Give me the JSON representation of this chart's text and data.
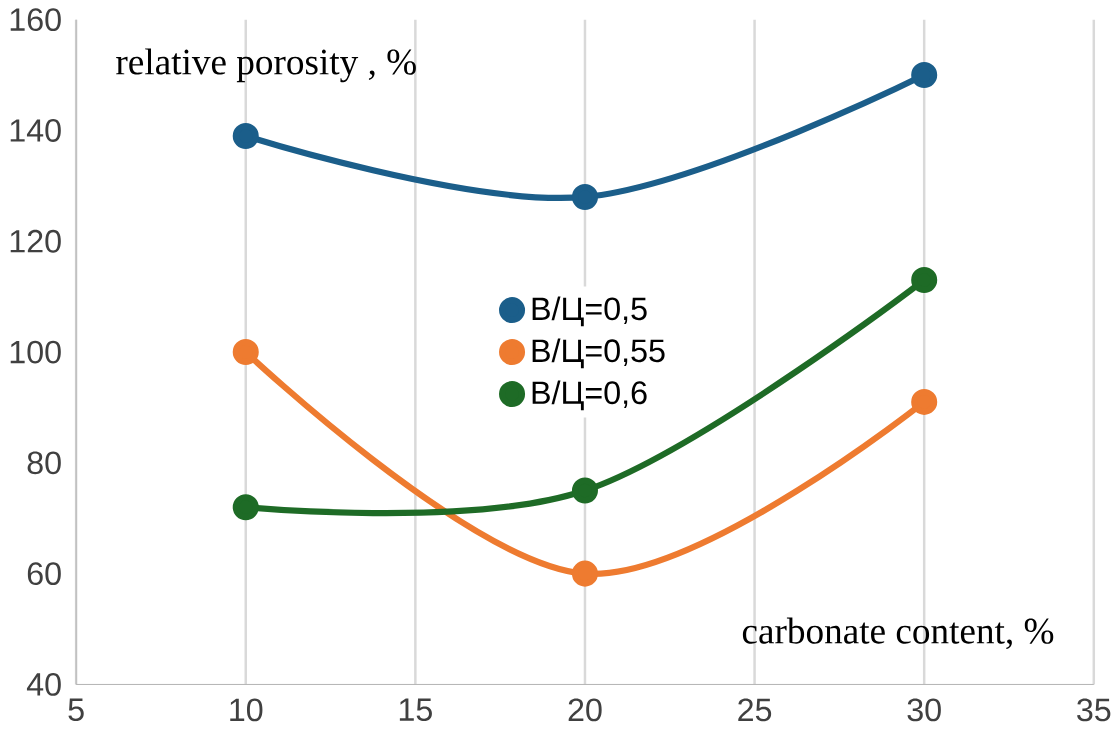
{
  "chart_data": {
    "type": "line",
    "xlabel": "carbonate content, %",
    "ylabel": "relative porosity , %",
    "x": [
      10,
      20,
      30
    ],
    "series": [
      {
        "name": "В/Ц=0,5",
        "color": "#1b5e8a",
        "values": [
          139,
          128,
          150
        ]
      },
      {
        "name": "В/Ц=0,55",
        "color": "#ee7b30",
        "values": [
          100,
          60,
          91
        ]
      },
      {
        "name": "В/Ц=0,6",
        "color": "#1e6b26",
        "values": [
          72,
          75,
          113
        ]
      }
    ],
    "xlim": [
      5,
      35
    ],
    "ylim": [
      40,
      160
    ],
    "xticks": [
      5,
      10,
      15,
      20,
      25,
      30,
      35
    ],
    "yticks": [
      40,
      60,
      80,
      100,
      120,
      140,
      160
    ],
    "grid": "x",
    "legend": "center",
    "marker": "circle",
    "line_style": "solid"
  }
}
